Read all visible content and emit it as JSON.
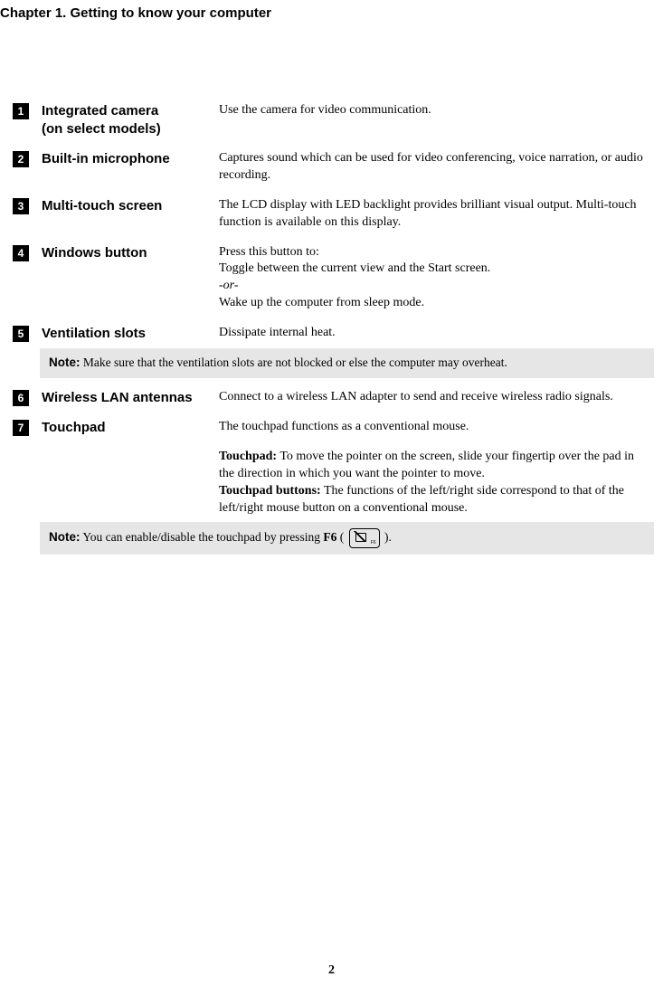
{
  "chapter_title": "Chapter 1. Getting to know your computer",
  "items": [
    {
      "num": "1",
      "label": "Integrated camera\n(on select models)",
      "desc_html": "Use the camera for video communication."
    },
    {
      "num": "2",
      "label": "Built-in microphone",
      "desc_html": "Captures sound which can be used for video conferencing, voice narration, or audio recording."
    },
    {
      "num": "3",
      "label": "Multi-touch screen",
      "desc_html": "The LCD display with LED backlight provides brilliant visual output. Multi-touch function is available on this display."
    },
    {
      "num": "4",
      "label": "Windows button",
      "desc_html": "Press this button to:<br>Toggle between the current view and the Start screen.<br><span class=\"or\">-or-</span><br>Wake up the computer from sleep mode."
    },
    {
      "num": "5",
      "label": "Ventilation slots",
      "desc_html": "Dissipate internal heat."
    }
  ],
  "note1": {
    "label": "Note:",
    "text": " Make sure that the ventilation slots are not blocked or else the computer may overheat."
  },
  "items2": [
    {
      "num": "6",
      "label": "Wireless LAN antennas",
      "desc_html": "Connect to a wireless LAN adapter to send and receive wireless radio signals."
    },
    {
      "num": "7",
      "label": "Touchpad",
      "desc_html": "The touchpad functions as a conventional mouse.<div class=\"touchpad-extra\"><span class=\"sub-bold\">Touchpad:</span> To move the pointer on the screen, slide your fingertip over the pad in the direction in which you want the pointer to move.<br><span class=\"sub-bold\">Touchpad buttons:</span> The functions of the left/right side correspond to that of the left/right mouse button on a conventional mouse.</div>"
    }
  ],
  "note2": {
    "label": "Note:",
    "text_before": " You can enable/disable the touchpad by pressing ",
    "f6": "F6",
    "text_after": " ( ",
    "text_close": " )."
  },
  "page_number": "2"
}
